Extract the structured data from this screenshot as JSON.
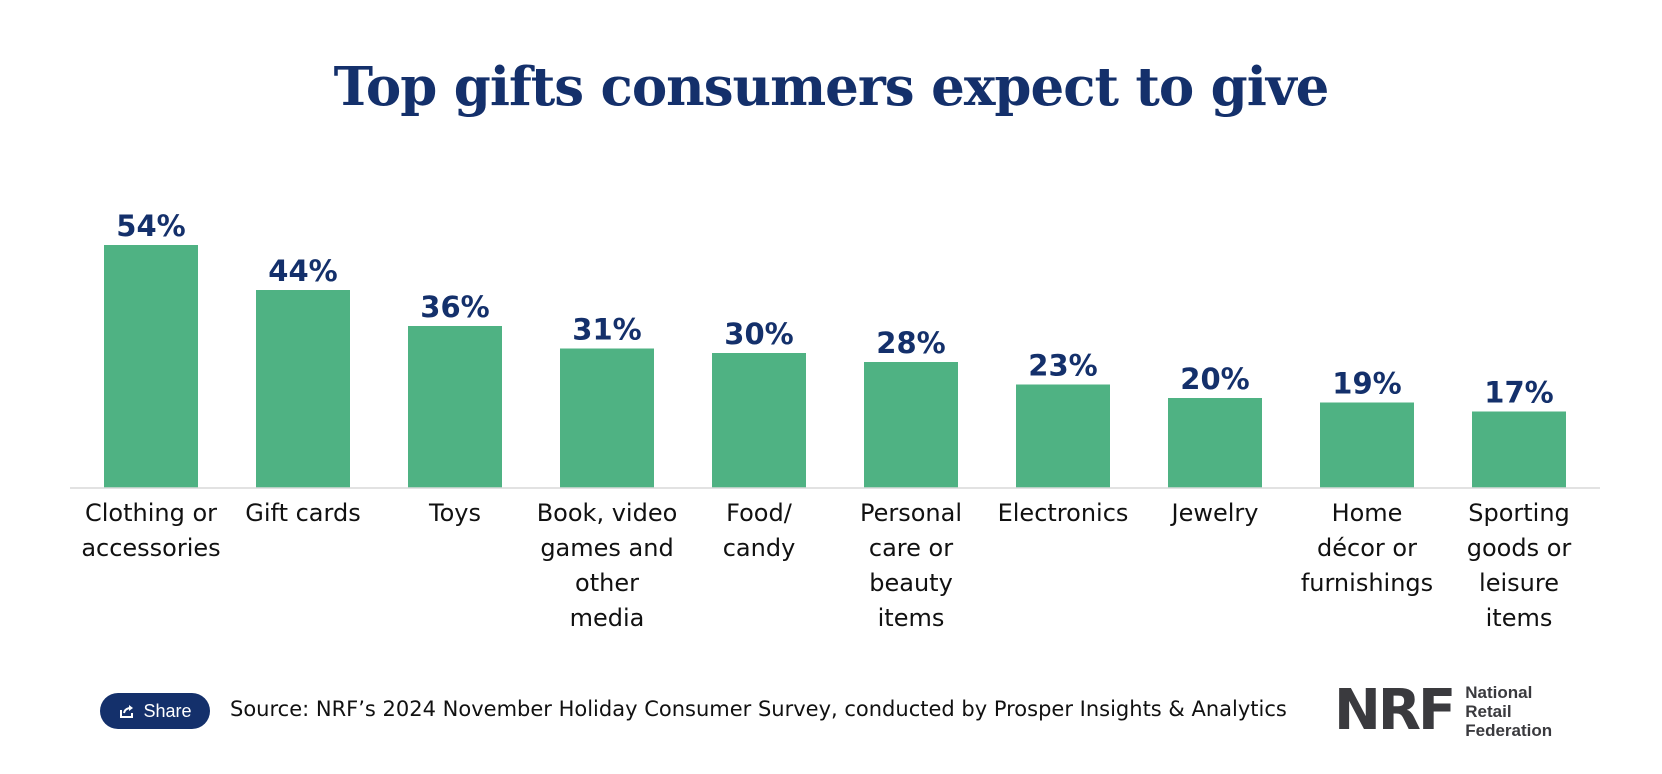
{
  "title": "Top gifts consumers expect to give",
  "share": {
    "label": "Share",
    "icon": "share-icon"
  },
  "source": "Source: NRF’s 2024 November Holiday Consumer Survey, conducted by Prosper Insights & Analytics",
  "logo": {
    "mark": "NRF",
    "name_lines": [
      "National",
      "Retail",
      "Federation"
    ]
  },
  "colors": {
    "bar": "#4fb283",
    "title": "#14306b",
    "value_label": "#14306b",
    "axis": "#d9d9d9"
  },
  "chart_data": {
    "type": "bar",
    "title": "Top gifts consumers expect to give",
    "xlabel": "",
    "ylabel": "",
    "ylim": [
      0,
      60
    ],
    "grid": false,
    "categories": [
      [
        "Clothing or",
        "accessories"
      ],
      [
        "Gift cards"
      ],
      [
        "Toys"
      ],
      [
        "Book, video",
        "games and",
        "other",
        "media"
      ],
      [
        "Food/",
        "candy"
      ],
      [
        "Personal",
        "care or",
        "beauty",
        "items"
      ],
      [
        "Electronics"
      ],
      [
        "Jewelry"
      ],
      [
        "Home",
        "décor or",
        "furnishings"
      ],
      [
        "Sporting",
        "goods or",
        "leisure",
        "items"
      ]
    ],
    "values": [
      54,
      44,
      36,
      31,
      30,
      28,
      23,
      20,
      19,
      17
    ],
    "value_labels": [
      "54%",
      "44%",
      "36%",
      "31%",
      "30%",
      "28%",
      "23%",
      "20%",
      "19%",
      "17%"
    ]
  }
}
